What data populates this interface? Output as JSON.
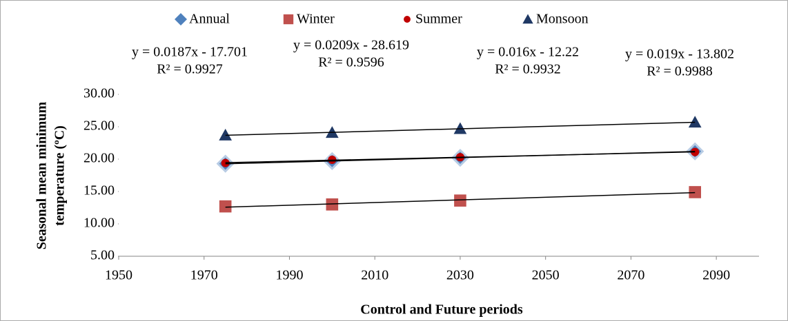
{
  "chart_data": {
    "type": "scatter",
    "x": [
      1975,
      2000,
      2030,
      2085
    ],
    "series": [
      {
        "name": "Annual",
        "color": "#4f81bd",
        "marker": "diamond",
        "values": [
          19.3,
          19.7,
          20.2,
          21.2
        ],
        "trendline_label": [
          "y = 0.0187x - 17.701",
          "R² = 0.9927"
        ]
      },
      {
        "name": "Winter",
        "color": "#c0504d",
        "marker": "square",
        "values": [
          12.7,
          13.0,
          13.6,
          14.9
        ],
        "trendline_label": [
          "y = 0.0209x - 28.619",
          "R² = 0.9596"
        ]
      },
      {
        "name": "Summer",
        "color": "#c00000",
        "marker": "circle",
        "values": [
          19.4,
          19.9,
          20.3,
          21.1
        ],
        "trendline_label": [
          "y = 0.016x - 12.22",
          "R² = 0.9932"
        ]
      },
      {
        "name": "Monsoon",
        "color": "#1f3864",
        "marker": "triangle",
        "values": [
          23.7,
          24.1,
          24.7,
          25.7
        ],
        "trendline_label": [
          "y = 0.019x - 13.802",
          "R² = 0.9988"
        ]
      }
    ],
    "x_label": "Control and Future periods",
    "y_label": [
      "Seasonal  mean minimum",
      "temperature (ºC)"
    ],
    "xlim": [
      1950,
      2100
    ],
    "xticks": [
      1950,
      1970,
      1990,
      2010,
      2030,
      2050,
      2070,
      2090
    ],
    "ylim": [
      5,
      30
    ],
    "yticks": [
      {
        "value": 5,
        "label": "5.00"
      },
      {
        "value": 10,
        "label": "10.00"
      },
      {
        "value": 15,
        "label": "15.00"
      },
      {
        "value": 20,
        "label": "20.00"
      },
      {
        "value": 25,
        "label": "25.00"
      },
      {
        "value": 30,
        "label": "30.00"
      }
    ],
    "legend": "top",
    "trendline": "linear"
  }
}
